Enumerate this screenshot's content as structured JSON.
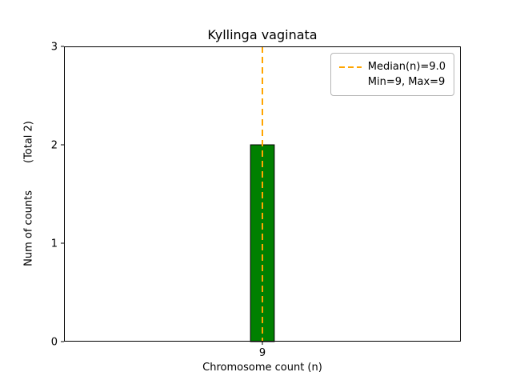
{
  "chart_data": {
    "type": "bar",
    "title": "Kyllinga vaginata",
    "xlabel": "Chromosome count (n)",
    "ylabel": "Num of counts",
    "ylabel_total": "(Total 2)",
    "categories": [
      "9"
    ],
    "x_numeric": [
      9
    ],
    "values": [
      2
    ],
    "xlim": [
      8,
      10
    ],
    "ylim": [
      0,
      3
    ],
    "yticks": [
      0,
      1,
      2,
      3
    ],
    "bar_width": 0.12,
    "bar_color": "#008000",
    "bar_edge_color": "#000000",
    "median": 9.0,
    "median_line_color": "#ffa500",
    "grid": false,
    "legend_position": "upper right",
    "legend": [
      {
        "label": "Median(n)=9.0",
        "marker": "dashed-line"
      },
      {
        "label": "Min=9, Max=9",
        "marker": "none"
      }
    ]
  }
}
